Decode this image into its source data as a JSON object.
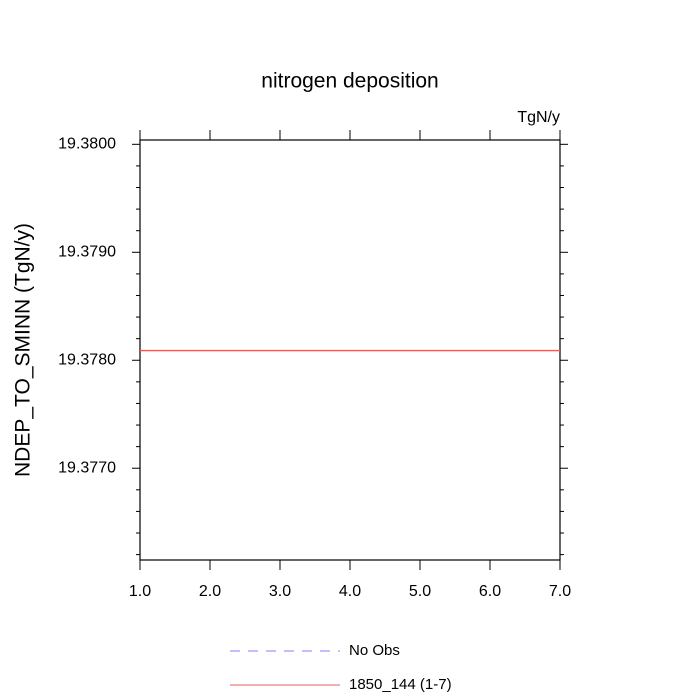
{
  "chart_data": {
    "type": "line",
    "title": "nitrogen deposition",
    "annotation": "TgN/y",
    "ylabel": "NDEP_TO_SMINN  (TgN/y)",
    "x": [
      1,
      2,
      3,
      4,
      5,
      6,
      7
    ],
    "series": [
      {
        "name": "No Obs",
        "color": "#8080ff",
        "dash": true,
        "values": [
          null,
          null,
          null,
          null,
          null,
          null,
          null
        ]
      },
      {
        "name": "1850_144 (1-7)",
        "color": "#e06060",
        "dash": false,
        "values": [
          19.37809,
          19.37809,
          19.37809,
          19.37809,
          19.37809,
          19.37809,
          19.37809
        ]
      }
    ],
    "xlim": [
      1,
      7
    ],
    "xticks": [
      {
        "value": 1,
        "label": "1.0"
      },
      {
        "value": 2,
        "label": "2.0"
      },
      {
        "value": 3,
        "label": "3.0"
      },
      {
        "value": 4,
        "label": "4.0"
      },
      {
        "value": 5,
        "label": "5.0"
      },
      {
        "value": 6,
        "label": "6.0"
      },
      {
        "value": 7,
        "label": "7.0"
      }
    ],
    "ylim": [
      19.37615,
      19.38004
    ],
    "yticks": [
      {
        "value": 19.377,
        "label": "19.3770"
      },
      {
        "value": 19.378,
        "label": "19.3780"
      },
      {
        "value": 19.379,
        "label": "19.3790"
      },
      {
        "value": 19.38,
        "label": "19.3800"
      }
    ],
    "yminor_ticks": [
      19.3762,
      19.3764,
      19.3766,
      19.3768,
      19.3772,
      19.3774,
      19.3776,
      19.3778,
      19.3782,
      19.3784,
      19.3786,
      19.3788,
      19.3792,
      19.3794,
      19.3796,
      19.3798
    ],
    "grid": false
  }
}
